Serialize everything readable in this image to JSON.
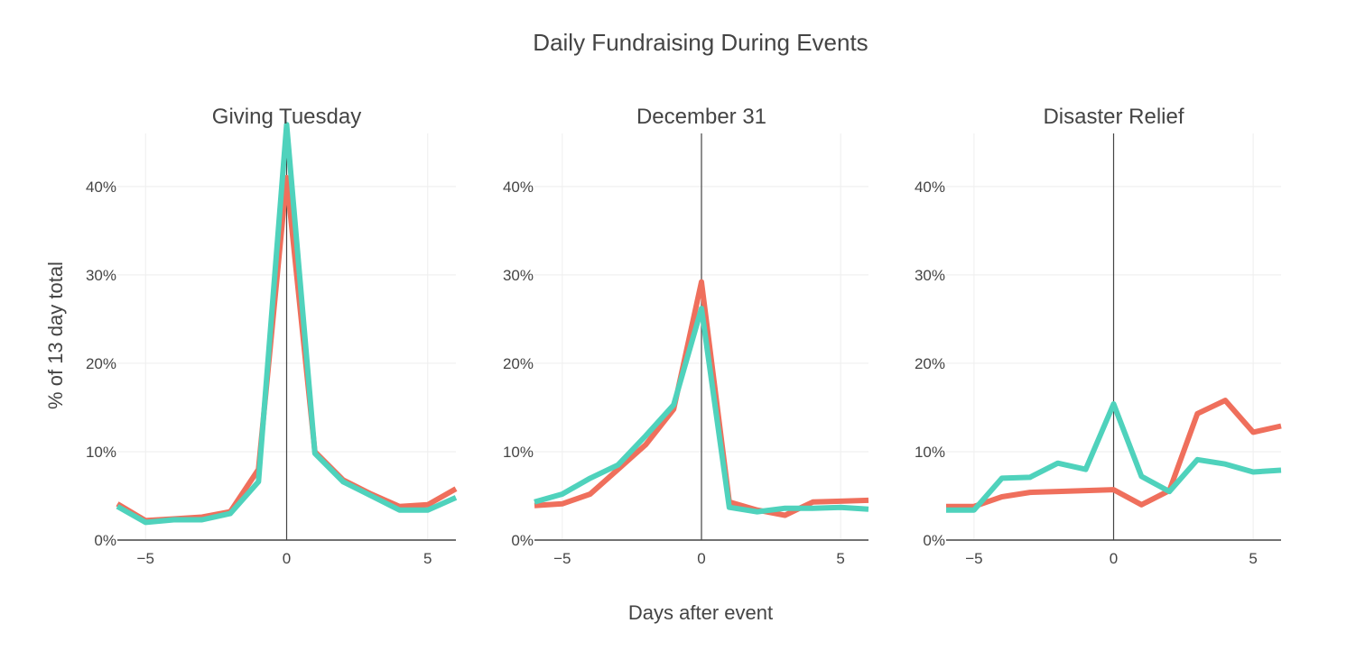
{
  "title": "Daily Fundraising During Events",
  "xlabel": "Days after event",
  "ylabel": "% of 13 day total",
  "chart_data": [
    {
      "type": "line",
      "title": "Giving Tuesday",
      "x": [
        -6,
        -5,
        -4,
        -3,
        -2,
        -1,
        0,
        1,
        2,
        3,
        4,
        5,
        6
      ],
      "xlim": [
        -6,
        6
      ],
      "ylim": [
        0,
        46
      ],
      "x_ticks": [
        "−5",
        "0",
        "5"
      ],
      "y_ticks": [
        "0%",
        "10%",
        "20%",
        "30%",
        "40%"
      ],
      "series": [
        {
          "color": "#ef6f5c",
          "values": [
            4.1,
            2.2,
            2.4,
            2.6,
            3.2,
            8.0,
            41.0,
            10.0,
            6.8,
            5.2,
            3.8,
            4.0,
            5.8
          ]
        },
        {
          "color": "#4fd2bc",
          "values": [
            3.8,
            2.0,
            2.3,
            2.3,
            3.0,
            6.6,
            47.0,
            9.8,
            6.6,
            5.0,
            3.4,
            3.4,
            4.8
          ]
        }
      ]
    },
    {
      "type": "line",
      "title": "December 31",
      "x": [
        -6,
        -5,
        -4,
        -3,
        -2,
        -1,
        0,
        1,
        2,
        3,
        4,
        5,
        6
      ],
      "xlim": [
        -6,
        6
      ],
      "ylim": [
        0,
        46
      ],
      "x_ticks": [
        "−5",
        "0",
        "5"
      ],
      "y_ticks": [
        "0%",
        "10%",
        "20%",
        "30%",
        "40%"
      ],
      "series": [
        {
          "color": "#ef6f5c",
          "values": [
            3.9,
            4.1,
            5.2,
            8.0,
            10.8,
            14.8,
            29.2,
            4.3,
            3.4,
            2.8,
            4.3,
            4.4,
            4.5
          ]
        },
        {
          "color": "#4fd2bc",
          "values": [
            4.3,
            5.2,
            7.0,
            8.5,
            11.8,
            15.3,
            26.2,
            3.7,
            3.2,
            3.6,
            3.6,
            3.7,
            3.5
          ]
        }
      ]
    },
    {
      "type": "line",
      "title": "Disaster Relief",
      "x": [
        -6,
        -5,
        -4,
        -3,
        -2,
        -1,
        0,
        1,
        2,
        3,
        4,
        5,
        6
      ],
      "xlim": [
        -6,
        6
      ],
      "ylim": [
        0,
        46
      ],
      "x_ticks": [
        "−5",
        "0",
        "5"
      ],
      "y_ticks": [
        "0%",
        "10%",
        "20%",
        "30%",
        "40%"
      ],
      "series": [
        {
          "color": "#ef6f5c",
          "values": [
            3.8,
            3.8,
            4.9,
            5.4,
            5.5,
            5.6,
            5.7,
            4.0,
            5.6,
            14.3,
            15.8,
            12.2,
            12.9
          ]
        },
        {
          "color": "#4fd2bc",
          "values": [
            3.4,
            3.4,
            7.0,
            7.1,
            8.7,
            8.0,
            15.4,
            7.2,
            5.5,
            9.1,
            8.6,
            7.7,
            7.9
          ]
        }
      ]
    }
  ]
}
